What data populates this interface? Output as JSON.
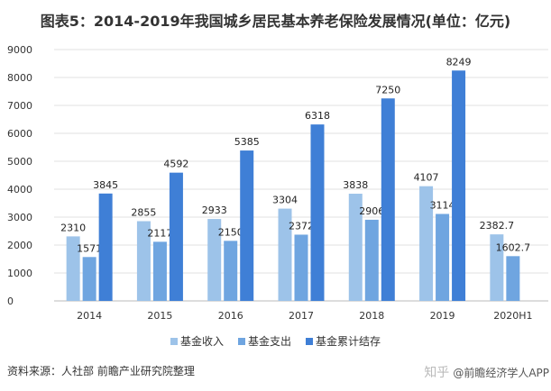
{
  "title": "图表5：2014-2019年我国城乡居民基本养老保险发展情况(单位：亿元)",
  "chart_data": {
    "type": "bar",
    "title": "图表5：2014-2019年我国城乡居民基本养老保险发展情况(单位：亿元)",
    "categories": [
      "2014",
      "2015",
      "2016",
      "2017",
      "2018",
      "2019",
      "2020H1"
    ],
    "series": [
      {
        "name": "基金收入",
        "color": "#9dc3e9",
        "values": [
          2310,
          2855,
          2933,
          3304,
          3838,
          4107,
          2382.7
        ]
      },
      {
        "name": "基金支出",
        "color": "#6fa5e0",
        "values": [
          1571,
          2117,
          2150,
          2372,
          2906,
          3114,
          1602.7
        ]
      },
      {
        "name": "基金累计结存",
        "color": "#3f7fd6",
        "values": [
          3845,
          4592,
          5385,
          6318,
          7250,
          8249,
          null
        ]
      }
    ],
    "ylim": [
      0,
      9000
    ],
    "yticks": [
      0,
      1000,
      2000,
      3000,
      4000,
      5000,
      6000,
      7000,
      8000,
      9000
    ],
    "grid": true,
    "legend": "bottom"
  },
  "source": "资料来源：人社部 前瞻产业研究院整理",
  "watermark": {
    "platform": "知乎",
    "account": "@前瞻经济学人APP"
  }
}
